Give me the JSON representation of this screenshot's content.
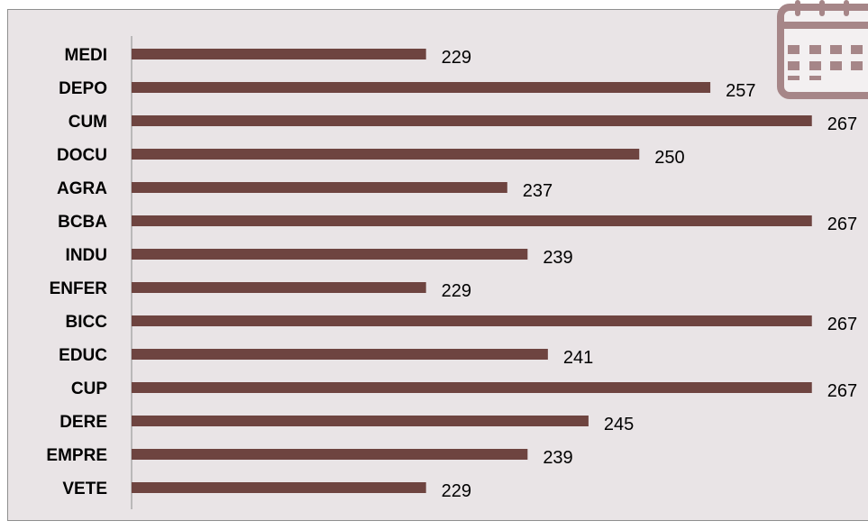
{
  "colors": {
    "bar": "#6e4440",
    "panel": "#e9e4e6",
    "axis": "#8c8c8c",
    "icon": "#a68688"
  },
  "icon": "calendar-icon",
  "chart_data": {
    "type": "bar",
    "orientation": "horizontal",
    "categories": [
      "MEDI",
      "DEPO",
      "CUM",
      "DOCU",
      "AGRA",
      "BCBA",
      "INDU",
      "ENFER",
      "BICC",
      "EDUC",
      "CUP",
      "DERE",
      "EMPRE",
      "VETE"
    ],
    "values": [
      229,
      257,
      267,
      250,
      237,
      267,
      239,
      229,
      267,
      241,
      267,
      245,
      239,
      229
    ],
    "title": "",
    "xlabel": "",
    "ylabel": "",
    "xlim": [
      200,
      268
    ],
    "grid": false,
    "legend": "none",
    "data_labels": true
  }
}
